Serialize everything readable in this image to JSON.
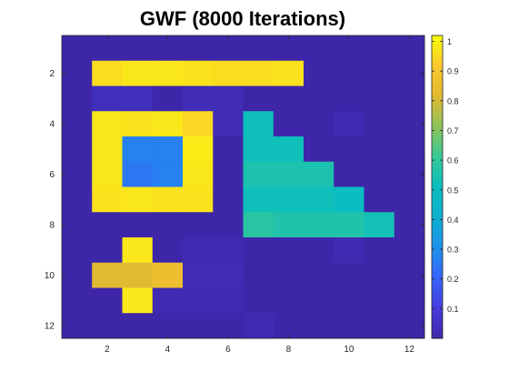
{
  "chart_data": {
    "type": "heatmap",
    "title": "GWF (8000 Iterations)",
    "xlabel": "",
    "ylabel": "",
    "x_ticks": [
      2,
      4,
      6,
      8,
      10,
      12
    ],
    "y_ticks": [
      2,
      4,
      6,
      8,
      10,
      12
    ],
    "xlim": [
      0.5,
      12.5
    ],
    "ylim": [
      0.5,
      12.5
    ],
    "y_direction": "reverse",
    "colormap": "parula",
    "clim": [
      0.0,
      1.02
    ],
    "colorbar_ticks": [
      0.1,
      0.2,
      0.3,
      0.4,
      0.5,
      0.6,
      0.7,
      0.8,
      0.9,
      1
    ],
    "colorbar_position": "right",
    "grid": false,
    "values": [
      [
        0.0,
        0.0,
        0.0,
        0.0,
        0.0,
        0.0,
        0.0,
        0.0,
        0.0,
        0.0,
        0.0,
        0.0
      ],
      [
        0.0,
        0.96,
        0.98,
        0.98,
        0.97,
        0.96,
        0.96,
        0.97,
        0.0,
        0.0,
        0.0,
        0.0
      ],
      [
        0.0,
        0.04,
        0.04,
        0.0,
        0.03,
        0.03,
        0.0,
        0.0,
        0.0,
        0.0,
        0.0,
        0.0
      ],
      [
        0.0,
        0.98,
        0.97,
        0.98,
        0.95,
        0.03,
        0.52,
        0.0,
        0.0,
        0.02,
        0.0,
        0.0
      ],
      [
        0.0,
        0.98,
        0.27,
        0.27,
        0.99,
        0.0,
        0.52,
        0.52,
        0.0,
        0.0,
        0.0,
        0.0
      ],
      [
        0.0,
        0.98,
        0.25,
        0.27,
        0.98,
        0.0,
        0.55,
        0.55,
        0.55,
        0.0,
        0.0,
        0.0
      ],
      [
        0.0,
        0.97,
        0.98,
        0.97,
        0.97,
        0.0,
        0.52,
        0.52,
        0.52,
        0.5,
        0.0,
        0.0
      ],
      [
        0.0,
        0.0,
        0.0,
        0.0,
        0.0,
        0.0,
        0.58,
        0.56,
        0.56,
        0.56,
        0.53,
        0.0
      ],
      [
        0.0,
        0.0,
        0.98,
        0.0,
        0.02,
        0.02,
        0.0,
        0.0,
        0.0,
        0.02,
        0.0,
        0.0
      ],
      [
        0.0,
        0.82,
        0.82,
        0.86,
        0.03,
        0.03,
        0.0,
        0.0,
        0.0,
        0.0,
        0.0,
        0.0
      ],
      [
        0.0,
        0.0,
        0.98,
        0.02,
        0.02,
        0.02,
        0.0,
        0.0,
        0.0,
        0.0,
        0.0,
        0.0
      ],
      [
        0.0,
        0.0,
        0.0,
        0.0,
        0.0,
        0.0,
        0.02,
        0.0,
        0.0,
        0.0,
        0.0,
        0.0
      ]
    ]
  }
}
